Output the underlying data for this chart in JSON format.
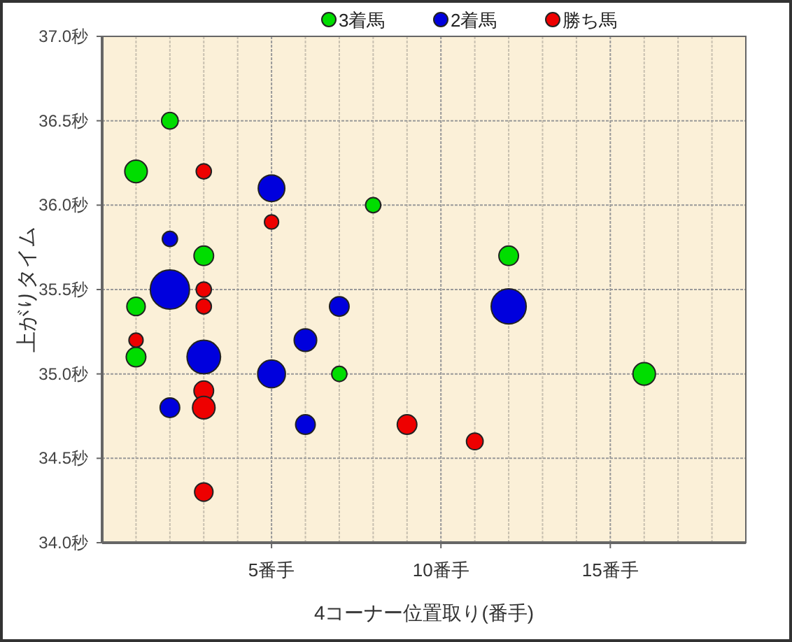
{
  "chart_data": {
    "type": "bubble",
    "xlabel": "4コーナー位置取り(番手)",
    "ylabel": "上がりタイム",
    "xlim": [
      0,
      19
    ],
    "ylim": [
      34.0,
      37.0
    ],
    "xticks": [
      {
        "value": 1,
        "label": null
      },
      {
        "value": 2,
        "label": null
      },
      {
        "value": 3,
        "label": null
      },
      {
        "value": 4,
        "label": null
      },
      {
        "value": 5,
        "label": "5番手"
      },
      {
        "value": 6,
        "label": null
      },
      {
        "value": 7,
        "label": null
      },
      {
        "value": 8,
        "label": null
      },
      {
        "value": 9,
        "label": null
      },
      {
        "value": 10,
        "label": "10番手"
      },
      {
        "value": 11,
        "label": null
      },
      {
        "value": 12,
        "label": null
      },
      {
        "value": 13,
        "label": null
      },
      {
        "value": 14,
        "label": null
      },
      {
        "value": 15,
        "label": "15番手"
      },
      {
        "value": 16,
        "label": null
      },
      {
        "value": 17,
        "label": null
      },
      {
        "value": 18,
        "label": null
      }
    ],
    "yticks": [
      {
        "value": 34.0,
        "label": "34.0秒"
      },
      {
        "value": 34.5,
        "label": "34.5秒"
      },
      {
        "value": 35.0,
        "label": "35.0秒"
      },
      {
        "value": 35.5,
        "label": "35.5秒"
      },
      {
        "value": 36.0,
        "label": "36.0秒"
      },
      {
        "value": 36.5,
        "label": "36.5秒"
      },
      {
        "value": 37.0,
        "label": "37.0秒"
      }
    ],
    "grid": true,
    "legend": "top",
    "marker": "circle",
    "series": [
      {
        "name": "3着馬",
        "color": "#00dd00",
        "x": [
          2,
          1,
          8,
          3,
          12,
          1,
          1,
          7,
          16
        ],
        "values": [
          36.5,
          36.2,
          36.0,
          35.7,
          35.7,
          35.4,
          35.1,
          35.0,
          35.0
        ],
        "sizes": [
          0.18,
          0.33,
          0.15,
          0.25,
          0.25,
          0.22,
          0.25,
          0.15,
          0.33
        ]
      },
      {
        "name": "2着馬",
        "color": "#0000dd",
        "x": [
          5,
          2,
          2,
          7,
          6,
          3,
          5,
          2,
          6,
          12
        ],
        "values": [
          36.1,
          35.8,
          35.5,
          35.4,
          35.2,
          35.1,
          35.0,
          34.8,
          34.7,
          35.4
        ],
        "sizes": [
          0.46,
          0.15,
          1,
          0.25,
          0.33,
          0.73,
          0.5,
          0.25,
          0.25,
          0.8
        ]
      },
      {
        "name": "勝ち馬",
        "color": "#ee0000",
        "x": [
          3,
          5,
          3,
          3,
          1,
          3,
          3,
          9,
          11,
          3
        ],
        "values": [
          36.2,
          35.9,
          35.5,
          35.4,
          35.2,
          34.9,
          34.8,
          34.7,
          34.6,
          34.3
        ],
        "sizes": [
          0.15,
          0.13,
          0.15,
          0.15,
          0.13,
          0.25,
          0.33,
          0.25,
          0.18,
          0.22
        ]
      }
    ]
  }
}
